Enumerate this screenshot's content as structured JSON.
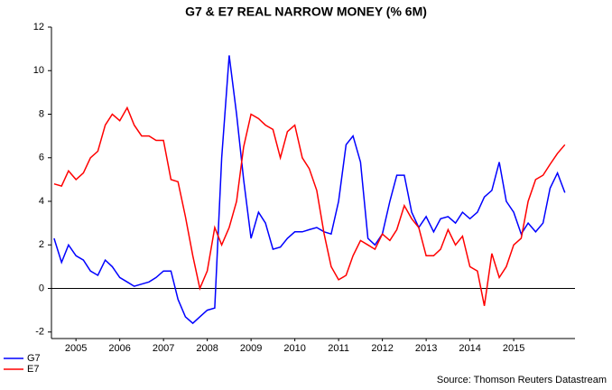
{
  "chart_data": {
    "type": "line",
    "title": "G7 & E7 REAL NARROW MONEY (% 6M)",
    "source": "Source: Thomson Reuters Datastream",
    "x": [
      2005,
      2005.17,
      2005.33,
      2005.5,
      2005.67,
      2005.83,
      2006,
      2006.17,
      2006.33,
      2006.5,
      2006.67,
      2006.83,
      2007,
      2007.17,
      2007.33,
      2007.5,
      2007.67,
      2007.83,
      2008,
      2008.17,
      2008.33,
      2008.5,
      2008.67,
      2008.83,
      2009,
      2009.17,
      2009.33,
      2009.5,
      2009.67,
      2009.83,
      2010,
      2010.17,
      2010.33,
      2010.5,
      2010.67,
      2010.83,
      2011,
      2011.17,
      2011.33,
      2011.5,
      2011.67,
      2011.83,
      2012,
      2012.17,
      2012.33,
      2012.5,
      2012.67,
      2012.83,
      2013,
      2013.17,
      2013.33,
      2013.5,
      2013.67,
      2013.83,
      2014,
      2014.17,
      2014.33,
      2014.5,
      2014.67,
      2014.83,
      2015,
      2015.17,
      2015.33,
      2015.5,
      2015.67,
      2015.83,
      2016,
      2016.17,
      2016.33,
      2016.5,
      2016.67
    ],
    "series": [
      {
        "name": "G7",
        "color": "#0000ff",
        "values": [
          2.3,
          1.2,
          2.0,
          1.5,
          1.3,
          0.8,
          0.6,
          1.3,
          1.0,
          0.5,
          0.3,
          0.1,
          0.2,
          0.3,
          0.5,
          0.8,
          0.8,
          -0.5,
          -1.3,
          -1.6,
          -1.3,
          -1.0,
          -0.9,
          6.0,
          10.7,
          8.0,
          5.0,
          2.3,
          3.5,
          3.0,
          1.8,
          1.9,
          2.3,
          2.6,
          2.6,
          2.7,
          2.8,
          2.6,
          2.5,
          4.0,
          6.6,
          7.0,
          5.8,
          2.3,
          2.0,
          2.5,
          4.0,
          5.2,
          5.2,
          3.5,
          2.8,
          3.3,
          2.6,
          3.2,
          3.3,
          3.0,
          3.5,
          3.2,
          3.5,
          4.2,
          4.5,
          5.8,
          4.0,
          3.5,
          2.5,
          3.0,
          2.6,
          3.0,
          4.6,
          5.3,
          4.4
        ]
      },
      {
        "name": "E7",
        "color": "#ff0000",
        "values": [
          4.8,
          4.7,
          5.4,
          5.0,
          5.3,
          6.0,
          6.3,
          7.5,
          8.0,
          7.7,
          8.3,
          7.5,
          7.0,
          7.0,
          6.8,
          6.8,
          5.0,
          4.9,
          3.3,
          1.5,
          0.0,
          0.8,
          2.8,
          2.0,
          2.8,
          4.0,
          6.5,
          8.0,
          7.8,
          7.5,
          7.3,
          6.0,
          7.2,
          7.5,
          6.0,
          5.5,
          4.5,
          2.5,
          1.0,
          0.4,
          0.6,
          1.5,
          2.2,
          2.0,
          1.8,
          2.5,
          2.2,
          2.7,
          3.8,
          3.2,
          2.8,
          1.5,
          1.5,
          1.8,
          2.7,
          2.0,
          2.4,
          1.0,
          0.8,
          -0.8,
          1.6,
          0.5,
          1.0,
          2.0,
          2.3,
          4.0,
          5.0,
          5.2,
          5.7,
          6.2,
          6.6
        ]
      }
    ],
    "xlim": [
      2004.94,
      2016.9
    ],
    "xticks": [
      {
        "value": 2005.5,
        "label": "2005"
      },
      {
        "value": 2006.5,
        "label": "2006"
      },
      {
        "value": 2007.5,
        "label": "2007"
      },
      {
        "value": 2008.5,
        "label": "2008"
      },
      {
        "value": 2009.5,
        "label": "2009"
      },
      {
        "value": 2010.5,
        "label": "2010"
      },
      {
        "value": 2011.5,
        "label": "2011"
      },
      {
        "value": 2012.5,
        "label": "2012"
      },
      {
        "value": 2013.5,
        "label": "2013"
      },
      {
        "value": 2014.5,
        "label": "2014"
      },
      {
        "value": 2015.5,
        "label": "2015"
      }
    ],
    "ylim": [
      -2.3,
      12
    ],
    "yticks": [
      -2,
      0,
      2,
      4,
      6,
      8,
      10,
      12
    ],
    "zero_line": true,
    "legend": "bottom-left"
  }
}
